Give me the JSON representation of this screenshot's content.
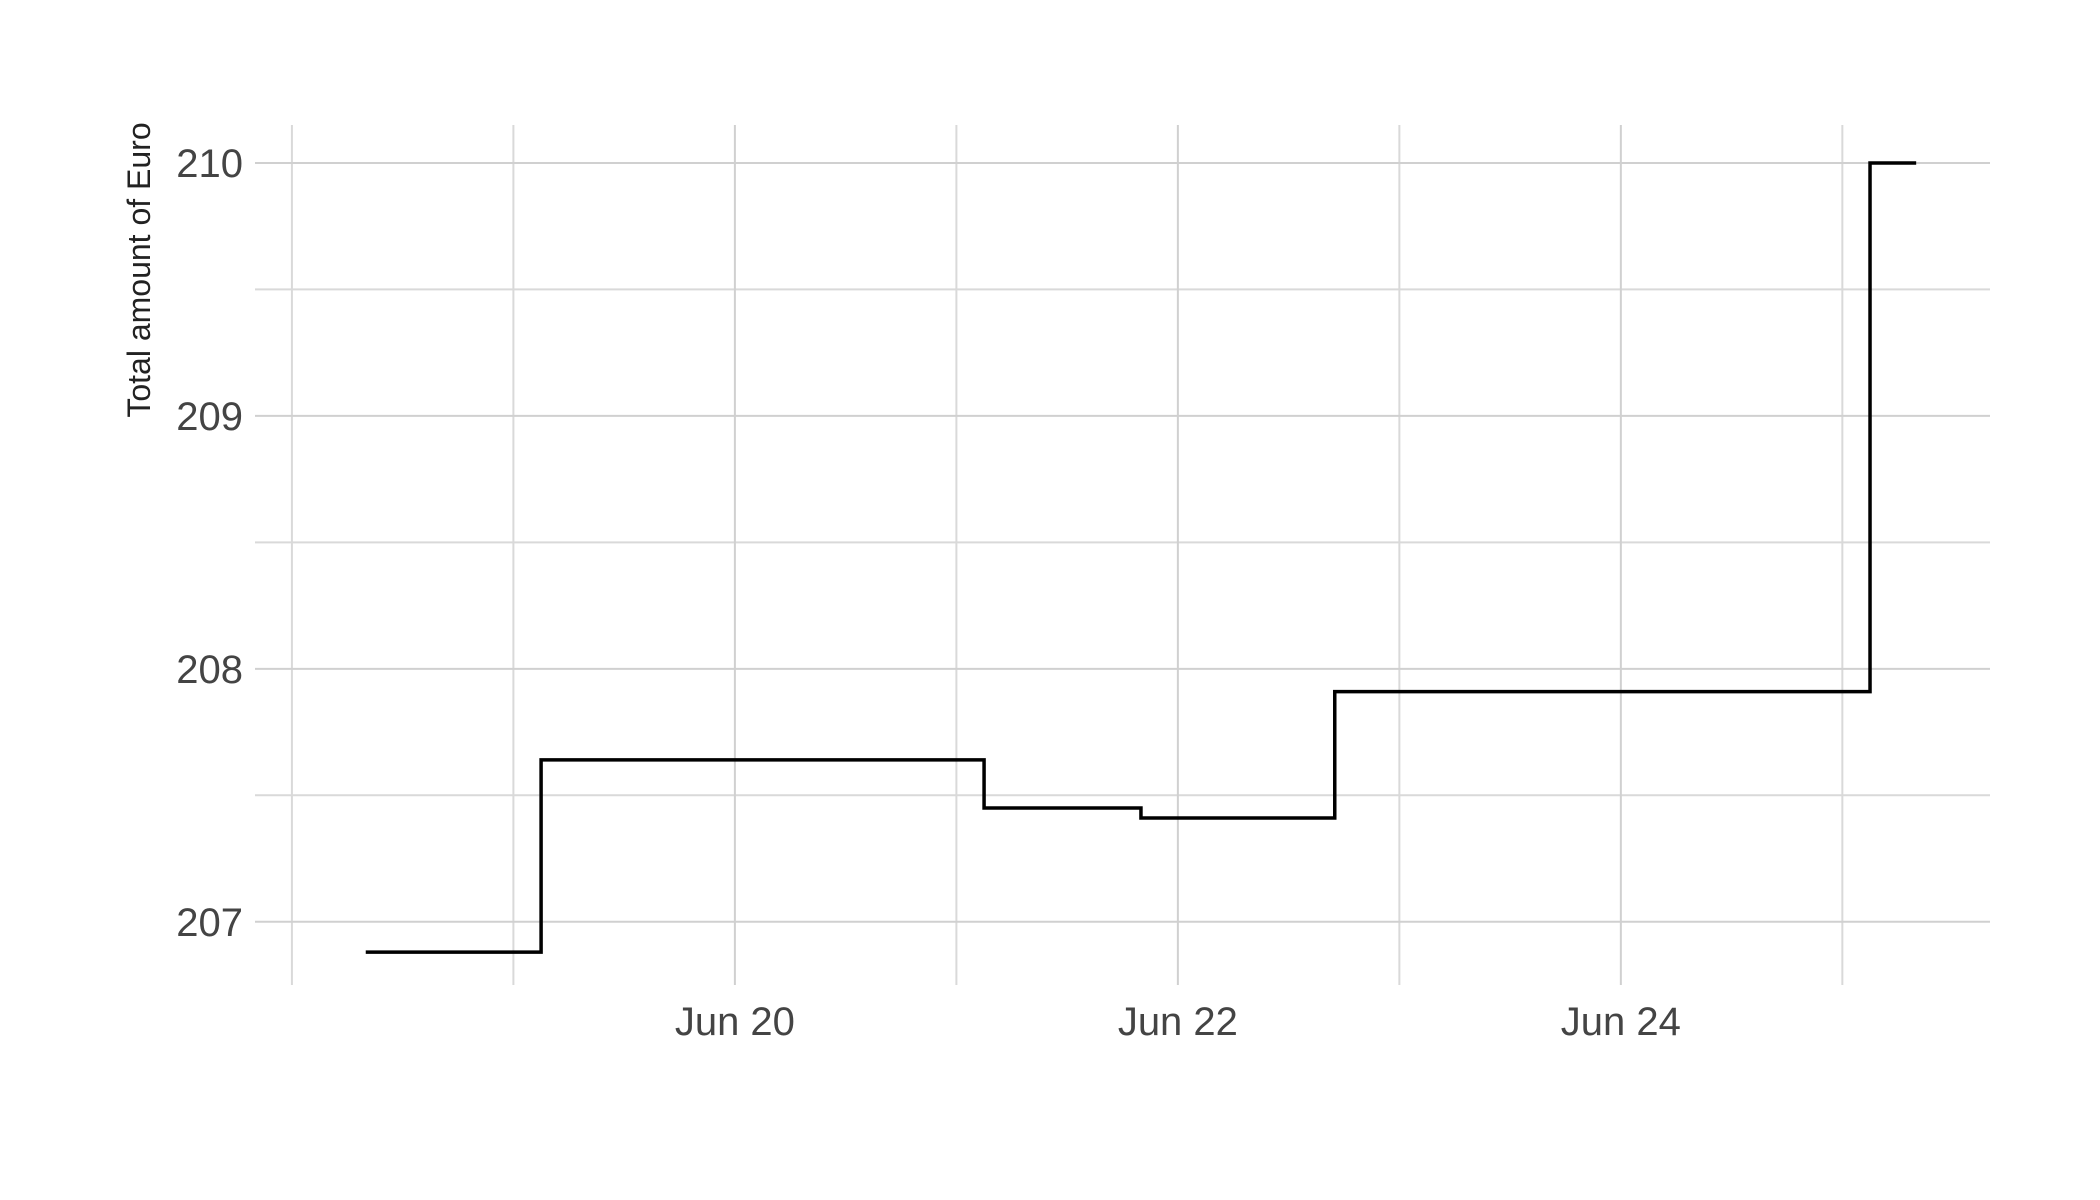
{
  "chart_data": {
    "type": "line",
    "line_shape": "step",
    "title": "",
    "xlabel": "",
    "ylabel": "Total amount of Euro",
    "x_ticks": [
      {
        "date": "2024-06-20",
        "label": "Jun 20"
      },
      {
        "date": "2024-06-22",
        "label": "Jun 22"
      },
      {
        "date": "2024-06-24",
        "label": "Jun 24"
      }
    ],
    "y_ticks": [
      207,
      208,
      209,
      210
    ],
    "xlim": [
      "2024-06-17T20:00",
      "2024-06-25T16:00"
    ],
    "ylim": [
      206.75,
      210.15
    ],
    "grid": true,
    "legend": "none",
    "series": [
      {
        "color": "#000000",
        "points": [
          {
            "x": "2024-06-18T08:00",
            "y": 206.88
          },
          {
            "x": "2024-06-19T03:00",
            "y": 207.64
          },
          {
            "x": "2024-06-21T03:00",
            "y": 207.45
          },
          {
            "x": "2024-06-21T20:00",
            "y": 207.41
          },
          {
            "x": "2024-06-22T17:00",
            "y": 207.91
          },
          {
            "x": "2024-06-25T03:00",
            "y": 210.0
          },
          {
            "x": "2024-06-25T08:00",
            "y": 210.0
          }
        ]
      }
    ]
  }
}
